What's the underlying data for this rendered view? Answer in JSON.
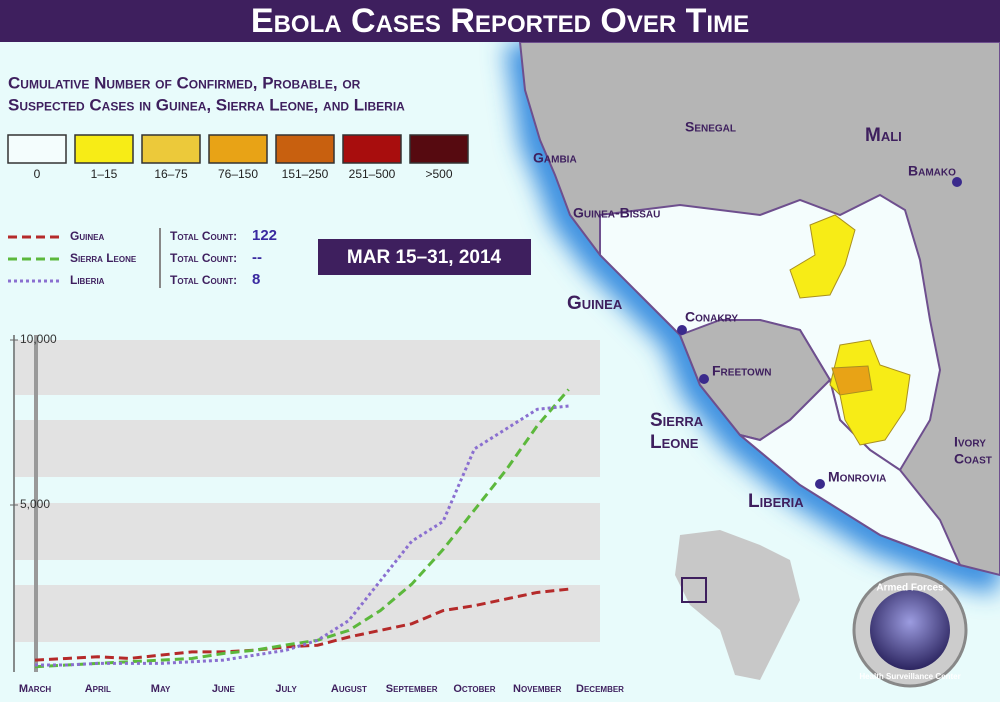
{
  "header": {
    "title": "Ebola Cases Reported Over Time"
  },
  "subtitle": [
    "Cumulative Number of Confirmed, Probable, or",
    "Suspected Cases in Guinea, Sierra Leone, and Liberia"
  ],
  "map_legend": [
    {
      "label": "0",
      "color": "#f4fdfd"
    },
    {
      "label": "1–15",
      "color": "#f7ec16"
    },
    {
      "label": "16–75",
      "color": "#ecc93a"
    },
    {
      "label": "76–150",
      "color": "#e8a316"
    },
    {
      "label": "151–250",
      "color": "#c8600f"
    },
    {
      "label": "251–500",
      "color": "#a80d0d"
    },
    {
      "label": ">500",
      "color": "#560a10"
    }
  ],
  "total_label": "Total Count:",
  "period": "MAR 15–31, 2014",
  "map_labels": {
    "senegal": "Senegal",
    "mali": "Mali",
    "gambia": "Gambia",
    "guinea_bissau": "Guinea-Bissau",
    "guinea": "Guinea",
    "conakry": "Conakry",
    "freetown": "Freetown",
    "sierra_leone_1": "Sierra",
    "sierra_leone_2": "Leone",
    "liberia": "Liberia",
    "monrovia": "Monrovia",
    "ivory_coast_1": "Ivory",
    "ivory_coast_2": "Coast",
    "bamako": "Bamako"
  },
  "logo": {
    "top": "Armed Forces",
    "bottom": "Health Surveillance Center"
  },
  "chart_data": {
    "type": "line",
    "categories": [
      "March",
      null,
      "April",
      null,
      "May",
      null,
      "June",
      null,
      "July",
      null,
      "August",
      null,
      "September",
      null,
      "October",
      null,
      "November",
      null,
      "December"
    ],
    "series": [
      {
        "name": "Guinea",
        "color": "#b52a2a",
        "line_style": "dashed",
        "total": "122",
        "values": [
          300,
          350,
          400,
          350,
          450,
          550,
          550,
          600,
          700,
          750,
          1000,
          1200,
          1400,
          1800,
          1950,
          2150,
          2350,
          2450,
          null
        ]
      },
      {
        "name": "Sierra Leone",
        "color": "#5cb83c",
        "line_style": "dashed",
        "total": "--",
        "values": [
          100,
          150,
          200,
          250,
          300,
          350,
          500,
          600,
          760,
          900,
          1200,
          1800,
          2600,
          3650,
          4850,
          6050,
          7400,
          8500,
          null
        ]
      },
      {
        "name": "Liberia",
        "color": "#8a6fd0",
        "line_style": "dotted",
        "total": "8",
        "values": [
          150,
          150,
          200,
          200,
          200,
          250,
          300,
          450,
          600,
          900,
          1500,
          2700,
          3900,
          4500,
          6700,
          7300,
          7900,
          8000,
          null
        ]
      }
    ],
    "ylim": [
      0,
      10000
    ],
    "yticks": [
      {
        "value": 10000,
        "label": "10,000"
      },
      {
        "value": 5000,
        "label": "5,000"
      }
    ],
    "grid": true
  }
}
